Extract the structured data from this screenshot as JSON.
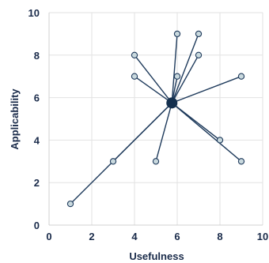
{
  "chart_data": {
    "type": "scatter",
    "title": "",
    "xlabel": "Usefulness",
    "ylabel": "Applicability",
    "xlim": [
      0,
      10
    ],
    "ylim": [
      0,
      10
    ],
    "xticks": [
      "0",
      "2",
      "4",
      "6",
      "8",
      "10"
    ],
    "yticks": [
      "0",
      "2",
      "4",
      "6",
      "8",
      "10"
    ],
    "grid": true,
    "legend": "none",
    "center": {
      "x": 5.75,
      "y": 5.75
    },
    "points": [
      {
        "x": 1,
        "y": 1
      },
      {
        "x": 3,
        "y": 3
      },
      {
        "x": 5,
        "y": 3
      },
      {
        "x": 4,
        "y": 7
      },
      {
        "x": 4,
        "y": 8
      },
      {
        "x": 6,
        "y": 7
      },
      {
        "x": 6,
        "y": 9
      },
      {
        "x": 7,
        "y": 8
      },
      {
        "x": 7,
        "y": 9
      },
      {
        "x": 8,
        "y": 4
      },
      {
        "x": 9,
        "y": 3
      },
      {
        "x": 9,
        "y": 7
      }
    ],
    "colors": {
      "line": "#1f3b5c",
      "point_fill": "#c9d9de",
      "center_fill": "#14304f",
      "text": "#1a2b4a",
      "grid": "#e2e2e2"
    }
  }
}
